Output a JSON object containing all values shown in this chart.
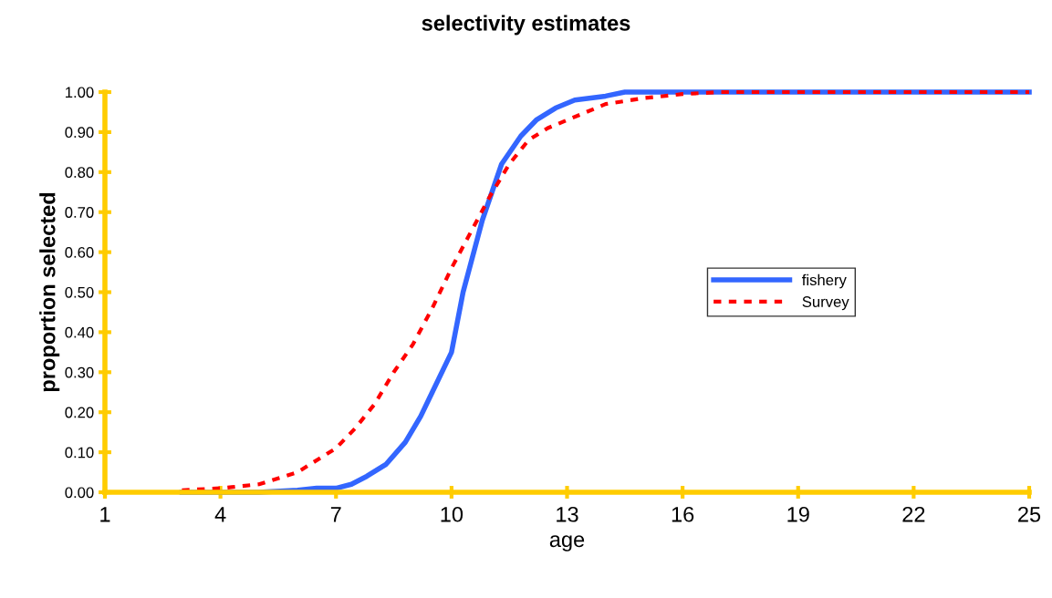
{
  "chart_data": {
    "type": "line",
    "title": "selectivity estimates",
    "xlabel": "age",
    "ylabel": "proportion selected",
    "xlim": [
      1,
      25
    ],
    "xticks": [
      1,
      4,
      7,
      10,
      13,
      16,
      19,
      22,
      25
    ],
    "ylim": [
      0,
      1
    ],
    "yticks": [
      {
        "value": 0,
        "label": "0.00"
      },
      {
        "value": 0.1,
        "label": "0.10"
      },
      {
        "value": 0.2,
        "label": "0.20"
      },
      {
        "value": 0.3,
        "label": "0.30"
      },
      {
        "value": 0.4,
        "label": "0.40"
      },
      {
        "value": 0.5,
        "label": "0.50"
      },
      {
        "value": 0.6,
        "label": "0.60"
      },
      {
        "value": 0.7,
        "label": "0.70"
      },
      {
        "value": 0.8,
        "label": "0.80"
      },
      {
        "value": 0.9,
        "label": "0.90"
      },
      {
        "value": 1,
        "label": "1.00"
      }
    ],
    "grid": false,
    "legend": "right",
    "marker": "none",
    "series": [
      {
        "name": "fishery",
        "color": "#3366ff",
        "line_style": "solid",
        "x": [
          3,
          4,
          5,
          6,
          6.5,
          7,
          7.4,
          7.8,
          8.3,
          8.8,
          9.2,
          9.5,
          10,
          10.3,
          10.8,
          11.3,
          11.8,
          12.2,
          12.7,
          13.2,
          14,
          14.5,
          16,
          20,
          25
        ],
        "values": [
          0,
          0,
          0,
          0.005,
          0.01,
          0.01,
          0.02,
          0.04,
          0.07,
          0.125,
          0.19,
          0.25,
          0.35,
          0.5,
          0.68,
          0.82,
          0.89,
          0.93,
          0.96,
          0.98,
          0.99,
          1,
          1,
          1,
          1
        ]
      },
      {
        "name": "Survey",
        "color": "#ff0000",
        "line_style": "dashed",
        "x": [
          3,
          4,
          5,
          6,
          7,
          7.5,
          8,
          8.5,
          9,
          9.5,
          10,
          10.5,
          11,
          11.5,
          12,
          12.5,
          13,
          13.5,
          14,
          15,
          16,
          17,
          20,
          25
        ],
        "values": [
          0.005,
          0.01,
          0.02,
          0.05,
          0.11,
          0.16,
          0.22,
          0.3,
          0.37,
          0.46,
          0.56,
          0.65,
          0.74,
          0.82,
          0.88,
          0.91,
          0.93,
          0.95,
          0.97,
          0.985,
          0.995,
          1,
          1,
          1
        ]
      }
    ]
  }
}
